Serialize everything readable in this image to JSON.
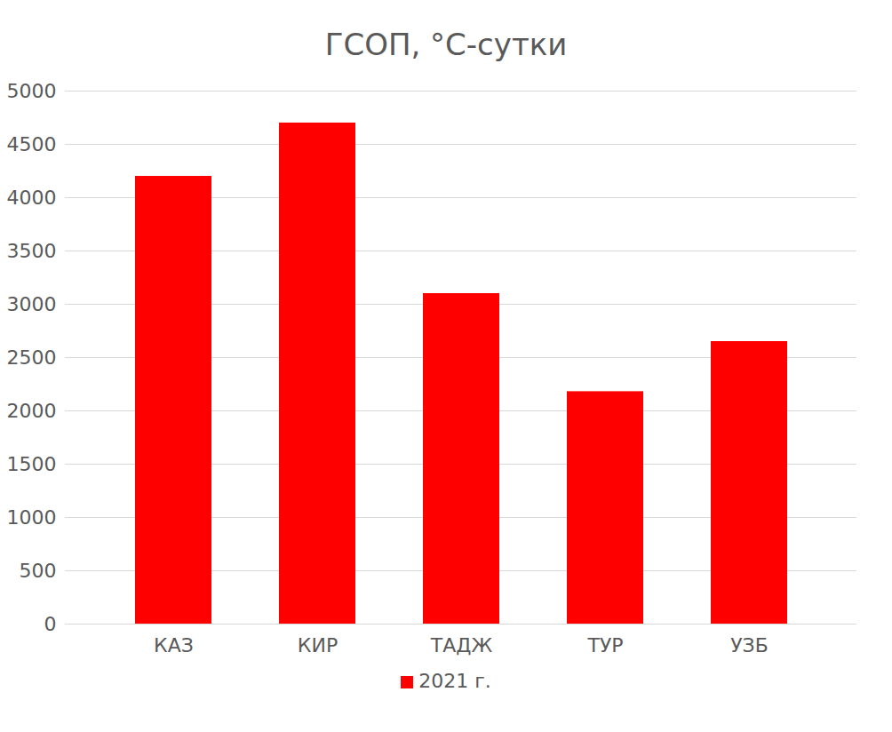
{
  "chart_data": {
    "type": "bar",
    "title": "ГСОП, °С-сутки",
    "categories": [
      "КАЗ",
      "КИР",
      "ТАДЖ",
      "ТУР",
      "УЗБ"
    ],
    "series": [
      {
        "name": "2021 г.",
        "color": "#ff0000",
        "values": [
          4200,
          4700,
          3100,
          2180,
          2650
        ]
      }
    ],
    "ylim": [
      0,
      5000
    ],
    "yticks": [
      0,
      500,
      1000,
      1500,
      2000,
      2500,
      3000,
      3500,
      4000,
      4500,
      5000
    ],
    "grid": true,
    "legend": "bottom"
  }
}
